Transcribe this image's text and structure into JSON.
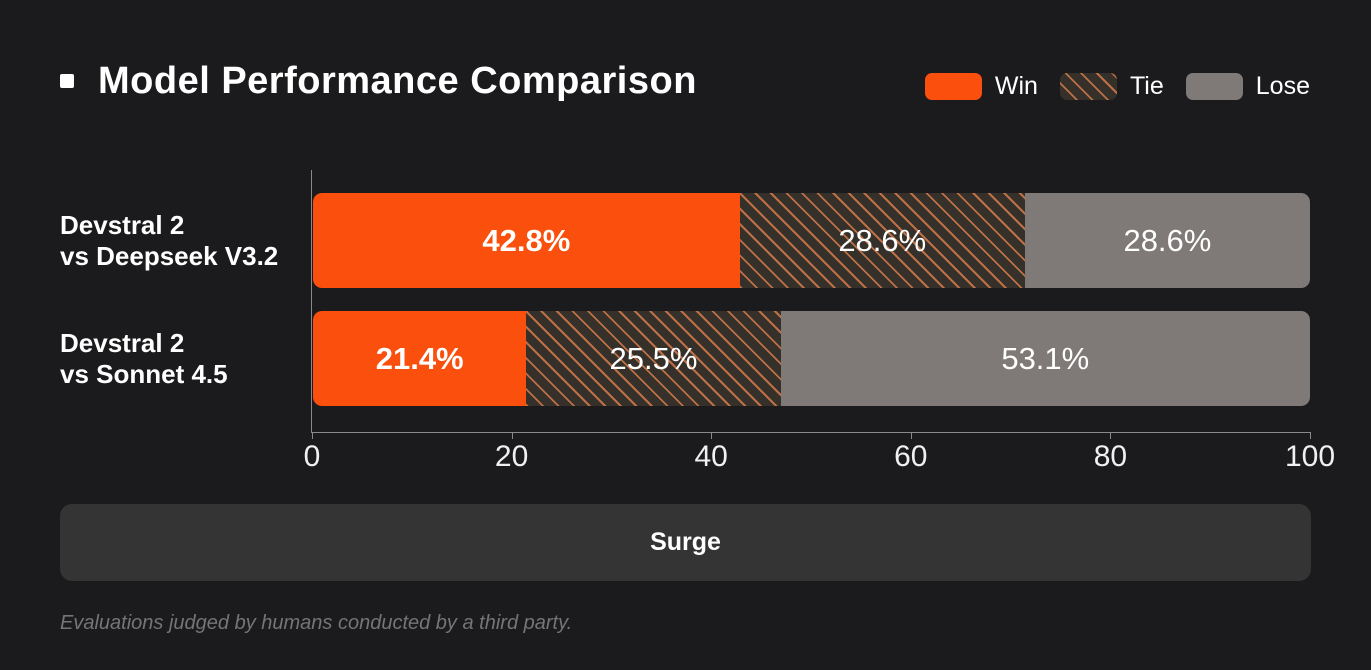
{
  "title": "Model Performance Comparison",
  "legend": {
    "items": [
      {
        "label": "Win",
        "color": "#fa4f0d",
        "pattern": "solid"
      },
      {
        "label": "Tie",
        "color": "#353029",
        "pattern": "hatch",
        "hatch_color": "#bd7046"
      },
      {
        "label": "Lose",
        "color": "#7f7977",
        "pattern": "solid"
      }
    ]
  },
  "chart_data": {
    "type": "bar",
    "orientation": "horizontal",
    "stacked": true,
    "title": "Model Performance Comparison",
    "categories": [
      "Devstral 2\nvs Deepseek V3.2",
      "Devstral 2\nvs Sonnet 4.5"
    ],
    "series": [
      {
        "name": "Win",
        "values": [
          42.8,
          21.4
        ]
      },
      {
        "name": "Tie",
        "values": [
          28.6,
          25.5
        ]
      },
      {
        "name": "Lose",
        "values": [
          28.6,
          53.1
        ]
      }
    ],
    "value_suffix": "%",
    "xlim": [
      0,
      100
    ],
    "xticks": [
      0,
      20,
      40,
      60,
      80,
      100
    ],
    "grid": false,
    "legend_position": "top-right"
  },
  "source_bar": {
    "label": "Surge"
  },
  "footnote": "Evaluations judged by humans conducted by a third party.",
  "colors": {
    "background": "#1b1b1d",
    "win": "#fa4f0d",
    "tie_bg": "#353029",
    "tie_hatch": "#bd7046",
    "lose": "#7f7977",
    "axis": "#8a8a8a",
    "panel": "#343434",
    "footnote_text": "#757575"
  }
}
